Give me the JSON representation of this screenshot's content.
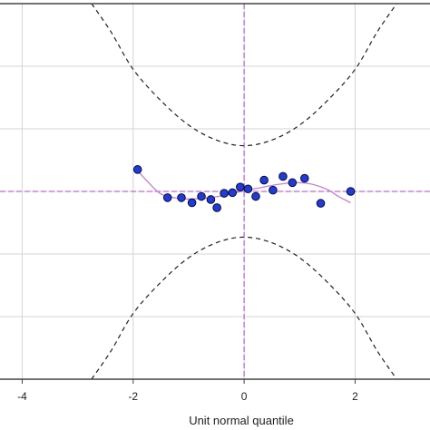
{
  "chart_data": {
    "type": "scatter",
    "title": "",
    "xlabel": "Unit normal quantile",
    "ylabel": "",
    "xlim": [
      -4.4,
      3.35
    ],
    "ylim": [
      -3.0,
      3.0
    ],
    "grid": true,
    "x_ticks": [
      -4,
      -2,
      0,
      2
    ],
    "x_tick_labels": [
      "-4",
      "-2",
      "0",
      "2"
    ],
    "y_gridlines": [
      -2,
      -1,
      0,
      1,
      2
    ],
    "colors": {
      "points": "#1f3cd6",
      "point_outline": "#0a0a3a",
      "smoother": "#c77fd6",
      "reference_lines": "#b044c8",
      "envelope": "#222222",
      "grid": "#d4d4d4"
    },
    "points": {
      "x": [
        -1.92,
        -1.38,
        -1.13,
        -0.94,
        -0.77,
        -0.6,
        -0.49,
        -0.36,
        -0.21,
        -0.07,
        0.07,
        0.21,
        0.36,
        0.52,
        0.7,
        0.87,
        1.09,
        1.38,
        1.92
      ],
      "y": [
        0.35,
        -0.1,
        -0.1,
        -0.18,
        -0.08,
        -0.13,
        -0.26,
        -0.03,
        -0.02,
        0.07,
        0.04,
        -0.08,
        0.18,
        0.02,
        0.24,
        0.14,
        0.21,
        -0.19,
        0.0
      ]
    },
    "smoother": {
      "x": [
        -1.92,
        -1.7,
        -1.5,
        -1.2,
        -0.9,
        -0.6,
        -0.3,
        0.0,
        0.3,
        0.6,
        0.9,
        1.2,
        1.5,
        1.7,
        1.92
      ],
      "y": [
        0.33,
        0.12,
        -0.04,
        -0.11,
        -0.12,
        -0.1,
        -0.05,
        0.01,
        0.06,
        0.11,
        0.14,
        0.12,
        0.03,
        -0.08,
        -0.18
      ]
    },
    "envelope": {
      "upper": [
        {
          "x": -2.75,
          "y": 3.0
        },
        {
          "x": -2.4,
          "y": 2.55
        },
        {
          "x": -2.0,
          "y": 1.95
        },
        {
          "x": -1.5,
          "y": 1.45
        },
        {
          "x": -1.0,
          "y": 1.06
        },
        {
          "x": -0.5,
          "y": 0.82
        },
        {
          "x": 0.0,
          "y": 0.73
        },
        {
          "x": 0.5,
          "y": 0.82
        },
        {
          "x": 1.0,
          "y": 1.06
        },
        {
          "x": 1.5,
          "y": 1.45
        },
        {
          "x": 2.0,
          "y": 1.95
        },
        {
          "x": 2.4,
          "y": 2.55
        },
        {
          "x": 2.75,
          "y": 3.0
        }
      ],
      "lower": [
        {
          "x": -2.75,
          "y": -3.0
        },
        {
          "x": -2.4,
          "y": -2.55
        },
        {
          "x": -2.0,
          "y": -1.95
        },
        {
          "x": -1.5,
          "y": -1.45
        },
        {
          "x": -1.0,
          "y": -1.06
        },
        {
          "x": -0.5,
          "y": -0.82
        },
        {
          "x": 0.0,
          "y": -0.73
        },
        {
          "x": 0.5,
          "y": -0.82
        },
        {
          "x": 1.0,
          "y": -1.06
        },
        {
          "x": 1.5,
          "y": -1.45
        },
        {
          "x": 2.0,
          "y": -1.95
        },
        {
          "x": 2.4,
          "y": -2.55
        },
        {
          "x": 2.75,
          "y": -3.0
        }
      ]
    },
    "reference_lines": {
      "x": 0,
      "y": 0
    }
  }
}
